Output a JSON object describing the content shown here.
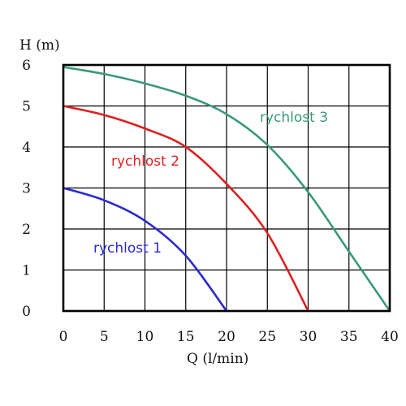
{
  "chart_data": {
    "type": "line",
    "title": "",
    "xlabel": "Q (l/min)",
    "ylabel": "H (m)",
    "xlim": [
      0,
      40
    ],
    "ylim": [
      0,
      6
    ],
    "x_ticks": [
      0,
      5,
      10,
      15,
      20,
      25,
      30,
      35,
      40
    ],
    "y_ticks": [
      0,
      1,
      2,
      3,
      4,
      5,
      6
    ],
    "x_tick_labels": [
      "0",
      "5",
      "10",
      "15",
      "20",
      "25",
      "30",
      "35",
      "40"
    ],
    "y_tick_labels": [
      "0",
      "1",
      "2",
      "3",
      "4",
      "5",
      "6"
    ],
    "grid": true,
    "legend": "none",
    "series": [
      {
        "name": "rychlost 1",
        "color": "#2a2ad0",
        "x": [
          0,
          5,
          10,
          15,
          20
        ],
        "y": [
          3.0,
          2.7,
          2.2,
          1.35,
          0.0
        ]
      },
      {
        "name": "rychlost 2",
        "color": "#dd2020",
        "x": [
          0,
          5,
          10,
          15,
          20,
          25,
          30
        ],
        "y": [
          5.0,
          4.78,
          4.45,
          4.0,
          3.1,
          1.9,
          0.0
        ]
      },
      {
        "name": "rychlost 3",
        "color": "#3a9a78",
        "x": [
          0,
          5,
          10,
          15,
          20,
          25,
          30,
          35,
          40
        ],
        "y": [
          5.95,
          5.78,
          5.55,
          5.25,
          4.8,
          4.05,
          2.9,
          1.45,
          0.0
        ]
      }
    ]
  }
}
